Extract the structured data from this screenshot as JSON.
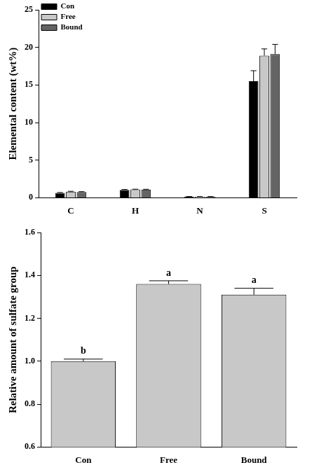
{
  "chart_data": [
    {
      "type": "bar",
      "ylabel": "Elemental content (wt%)",
      "categories": [
        "C",
        "H",
        "N",
        "S"
      ],
      "series": [
        {
          "name": "Con",
          "color": "#000000",
          "values": [
            0.65,
            1.05,
            0.15,
            15.5
          ],
          "errors": [
            0.05,
            0.05,
            0.02,
            1.4
          ]
        },
        {
          "name": "Free",
          "color": "#c8c8c8",
          "values": [
            0.8,
            1.1,
            0.15,
            18.9
          ],
          "errors": [
            0.06,
            0.04,
            0.02,
            0.9
          ]
        },
        {
          "name": "Bound",
          "color": "#646464",
          "values": [
            0.75,
            1.08,
            0.15,
            19.1
          ],
          "errors": [
            0.06,
            0.05,
            0.02,
            1.3
          ]
        }
      ],
      "ylim": [
        0,
        25
      ],
      "yticks": [
        0,
        5,
        10,
        15,
        20,
        25
      ],
      "grid": false,
      "legend": "top-left"
    },
    {
      "type": "bar",
      "ylabel": "Relative amount of sulfate group",
      "categories": [
        "Con",
        "Free",
        "Bound"
      ],
      "values": [
        1.0,
        1.36,
        1.31
      ],
      "errors": [
        0.01,
        0.015,
        0.03
      ],
      "annotations": [
        "b",
        "a",
        "a"
      ],
      "color": "#c8c8c8",
      "ylim": [
        0.6,
        1.6
      ],
      "yticks": [
        0.6,
        0.8,
        {
          "value": 1.0,
          "label": "1.0"
        },
        1.2,
        1.4,
        1.6
      ],
      "grid": false
    }
  ]
}
